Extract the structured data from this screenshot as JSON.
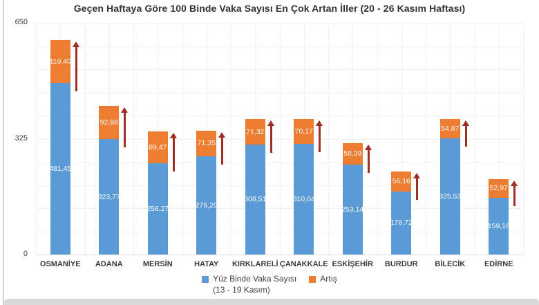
{
  "chart_data": {
    "type": "bar",
    "stacked": true,
    "title": "Geçen Haftaya Göre 100 Binde Vaka Sayısı En Çok Artan İller (20 - 26 Kasım Haftası)",
    "categories": [
      "OSMANİYE",
      "ADANA",
      "MERSİN",
      "HATAY",
      "KIRKLARELİ",
      "ÇANAKKALE",
      "ESKİŞEHİR",
      "BURDUR",
      "BİLECİK",
      "EDİRNE"
    ],
    "series": [
      {
        "name": "Yüz Binde Vaka Sayısı",
        "name_line2": "(13 - 19 Kasım)",
        "color": "#5b9bd5",
        "values": [
          481.45,
          323.77,
          256.27,
          276.2,
          308.51,
          310.04,
          253.14,
          176.72,
          325.53,
          159.16
        ],
        "labels": [
          "481,45",
          "323,77",
          "256,27",
          "276,20",
          "308,51",
          "310,04",
          "253,14",
          "176,72",
          "325,53",
          "159,16"
        ]
      },
      {
        "name": "Artış",
        "color": "#ed7d31",
        "values": [
          119.4,
          92.88,
          89.47,
          71.35,
          71.32,
          70.17,
          58.39,
          56.16,
          54.87,
          52.97
        ],
        "labels": [
          "119,40",
          "92,88",
          "89,47",
          "71,35",
          "71,32",
          "70,17",
          "58,39",
          "56,16",
          "54,87",
          "52,97"
        ]
      }
    ],
    "y_axis": {
      "min": 0,
      "max": 650,
      "ticks": [
        "650",
        "325",
        "0"
      ],
      "minor_gridline_step": 65
    },
    "grid": {
      "show": true,
      "v_divisions": 20
    },
    "legend_position": "bottom",
    "increase_arrow_color": "#a02e25",
    "bar_label_color": "#ffffff"
  }
}
